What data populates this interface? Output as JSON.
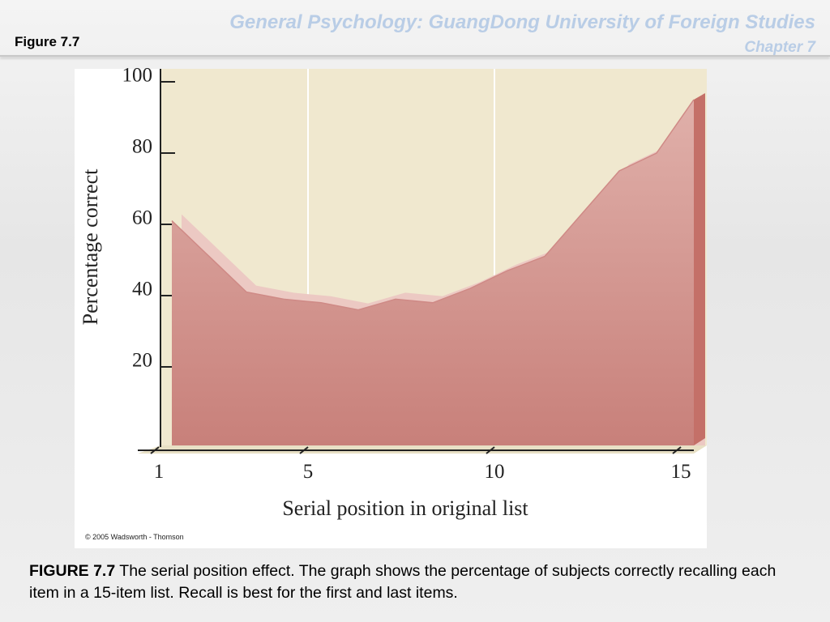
{
  "header": {
    "title": "General Psychology: GuangDong University of Foreign Studies",
    "subtitle": "Chapter 7",
    "figure": "Figure 7.7"
  },
  "chart_data": {
    "type": "area",
    "ylabel": "Percentage correct",
    "xlabel": "Serial position in original list",
    "x": [
      1,
      2,
      3,
      4,
      5,
      6,
      7,
      8,
      9,
      10,
      11,
      12,
      13,
      14,
      15
    ],
    "values": [
      61,
      51,
      41,
      39,
      38,
      36,
      39,
      38,
      42,
      47,
      51,
      63,
      75,
      80,
      95
    ],
    "color": "#cf8a86",
    "xlim": [
      1,
      15
    ],
    "xticks": [
      1,
      5,
      10,
      15
    ],
    "ylim": [
      0,
      100
    ],
    "yticks": [
      20,
      40,
      60,
      80,
      100
    ],
    "grid": true,
    "annotation": "© 2005 Wadsworth - Thomson"
  },
  "caption": {
    "label": "FIGURE 7.7",
    "text": "The serial position effect. The graph shows the percentage of subjects correctly recalling each item in a 15-item list. Recall is best for the first and last items."
  }
}
